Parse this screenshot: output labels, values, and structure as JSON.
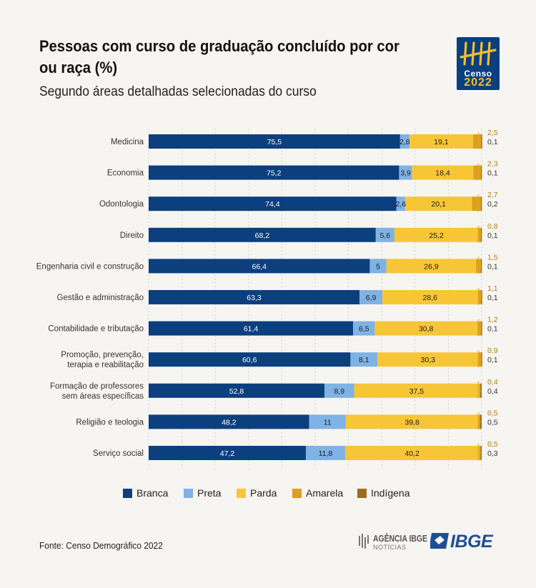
{
  "header": {
    "title": "Pessoas com curso de graduação concluído por cor ou raça (%)",
    "subtitle": "Segundo áreas detalhadas selecionadas do curso"
  },
  "badge": {
    "line1": "Censo",
    "line2": "2022"
  },
  "colors": {
    "branca": "#0b3f7e",
    "preta": "#7fb2e5",
    "parda": "#f7c636",
    "amarela": "#dba021",
    "indigena": "#9c6b1c",
    "annotation_line": "#e8a81d"
  },
  "chart_data": {
    "type": "bar",
    "orientation": "horizontal",
    "stacked": true,
    "title": "Pessoas com curso de graduação concluído por cor ou raça (%)",
    "subtitle": "Segundo áreas detalhadas selecionadas do curso",
    "xlim": [
      0,
      100
    ],
    "categories": [
      "Medicina",
      "Economia",
      "Odontologia",
      "Direito",
      "Engenharia civil e construção",
      "Gestão e administração",
      "Contabilidade e tributação",
      "Promoção, prevenção, terapia e reabilitação",
      "Formação de professores sem áreas específicas",
      "Religião e teologia",
      "Serviço social"
    ],
    "category_lines": [
      [
        "Medicina"
      ],
      [
        "Economia"
      ],
      [
        "Odontologia"
      ],
      [
        "Direito"
      ],
      [
        "Engenharia civil e construção"
      ],
      [
        "Gestão e administração"
      ],
      [
        "Contabilidade e tributação"
      ],
      [
        "Promoção, prevenção,",
        "terapia e reabilitação"
      ],
      [
        "Formação de professores",
        "sem áreas específicas"
      ],
      [
        "Religião e teologia"
      ],
      [
        "Serviço social"
      ]
    ],
    "series": [
      {
        "name": "Branca",
        "values": [
          75.5,
          75.2,
          74.4,
          68.2,
          66.4,
          63.3,
          61.4,
          60.6,
          52.8,
          48.2,
          47.2
        ]
      },
      {
        "name": "Preta",
        "values": [
          2.8,
          3.9,
          2.6,
          5.6,
          5,
          6.9,
          6.5,
          8.1,
          8.9,
          11,
          11.8
        ]
      },
      {
        "name": "Parda",
        "values": [
          19.1,
          18.4,
          20.1,
          25.2,
          26.9,
          28.6,
          30.8,
          30.3,
          37.5,
          39.8,
          40.2
        ]
      },
      {
        "name": "Amarela",
        "values": [
          2.5,
          2.3,
          2.7,
          0.8,
          1.5,
          1.1,
          1.2,
          0.9,
          0.4,
          0.5,
          0.5
        ]
      },
      {
        "name": "Indígena",
        "values": [
          0.1,
          0.1,
          0.2,
          0.1,
          0.1,
          0.1,
          0.1,
          0.1,
          0.4,
          0.5,
          0.3
        ]
      }
    ],
    "value_labels": {
      "branca": [
        "75,5",
        "75,2",
        "74,4",
        "68,2",
        "66,4",
        "63,3",
        "61,4",
        "60,6",
        "52,8",
        "48,2",
        "47,2"
      ],
      "preta": [
        "2,8",
        "3,9",
        "2,6",
        "5,6",
        "5",
        "6,9",
        "6,5",
        "8,1",
        "8,9",
        "11",
        "11,8"
      ],
      "parda": [
        "19,1",
        "18,4",
        "20,1",
        "25,2",
        "26,9",
        "28,6",
        "30,8",
        "30,3",
        "37,5",
        "39,8",
        "40,2"
      ],
      "amarela": [
        "2,5",
        "2,3",
        "2,7",
        "0,8",
        "1,5",
        "1,1",
        "1,2",
        "0,9",
        "0,4",
        "0,5",
        "0,5"
      ],
      "indigena": [
        "0,1",
        "0,1",
        "0,2",
        "0,1",
        "0,1",
        "0,1",
        "0,1",
        "0,1",
        "0,4",
        "0,5",
        "0,3"
      ]
    },
    "legend": [
      "Branca",
      "Preta",
      "Parda",
      "Amarela",
      "Indígena"
    ],
    "legend_position": "bottom",
    "grid": true
  },
  "footer": {
    "source": "Fonte: Censo Demográfico 2022",
    "agencia_line1": "AGÊNCIA IBGE",
    "agencia_line2": "NOTÍCIAS",
    "ibge": "IBGE"
  }
}
